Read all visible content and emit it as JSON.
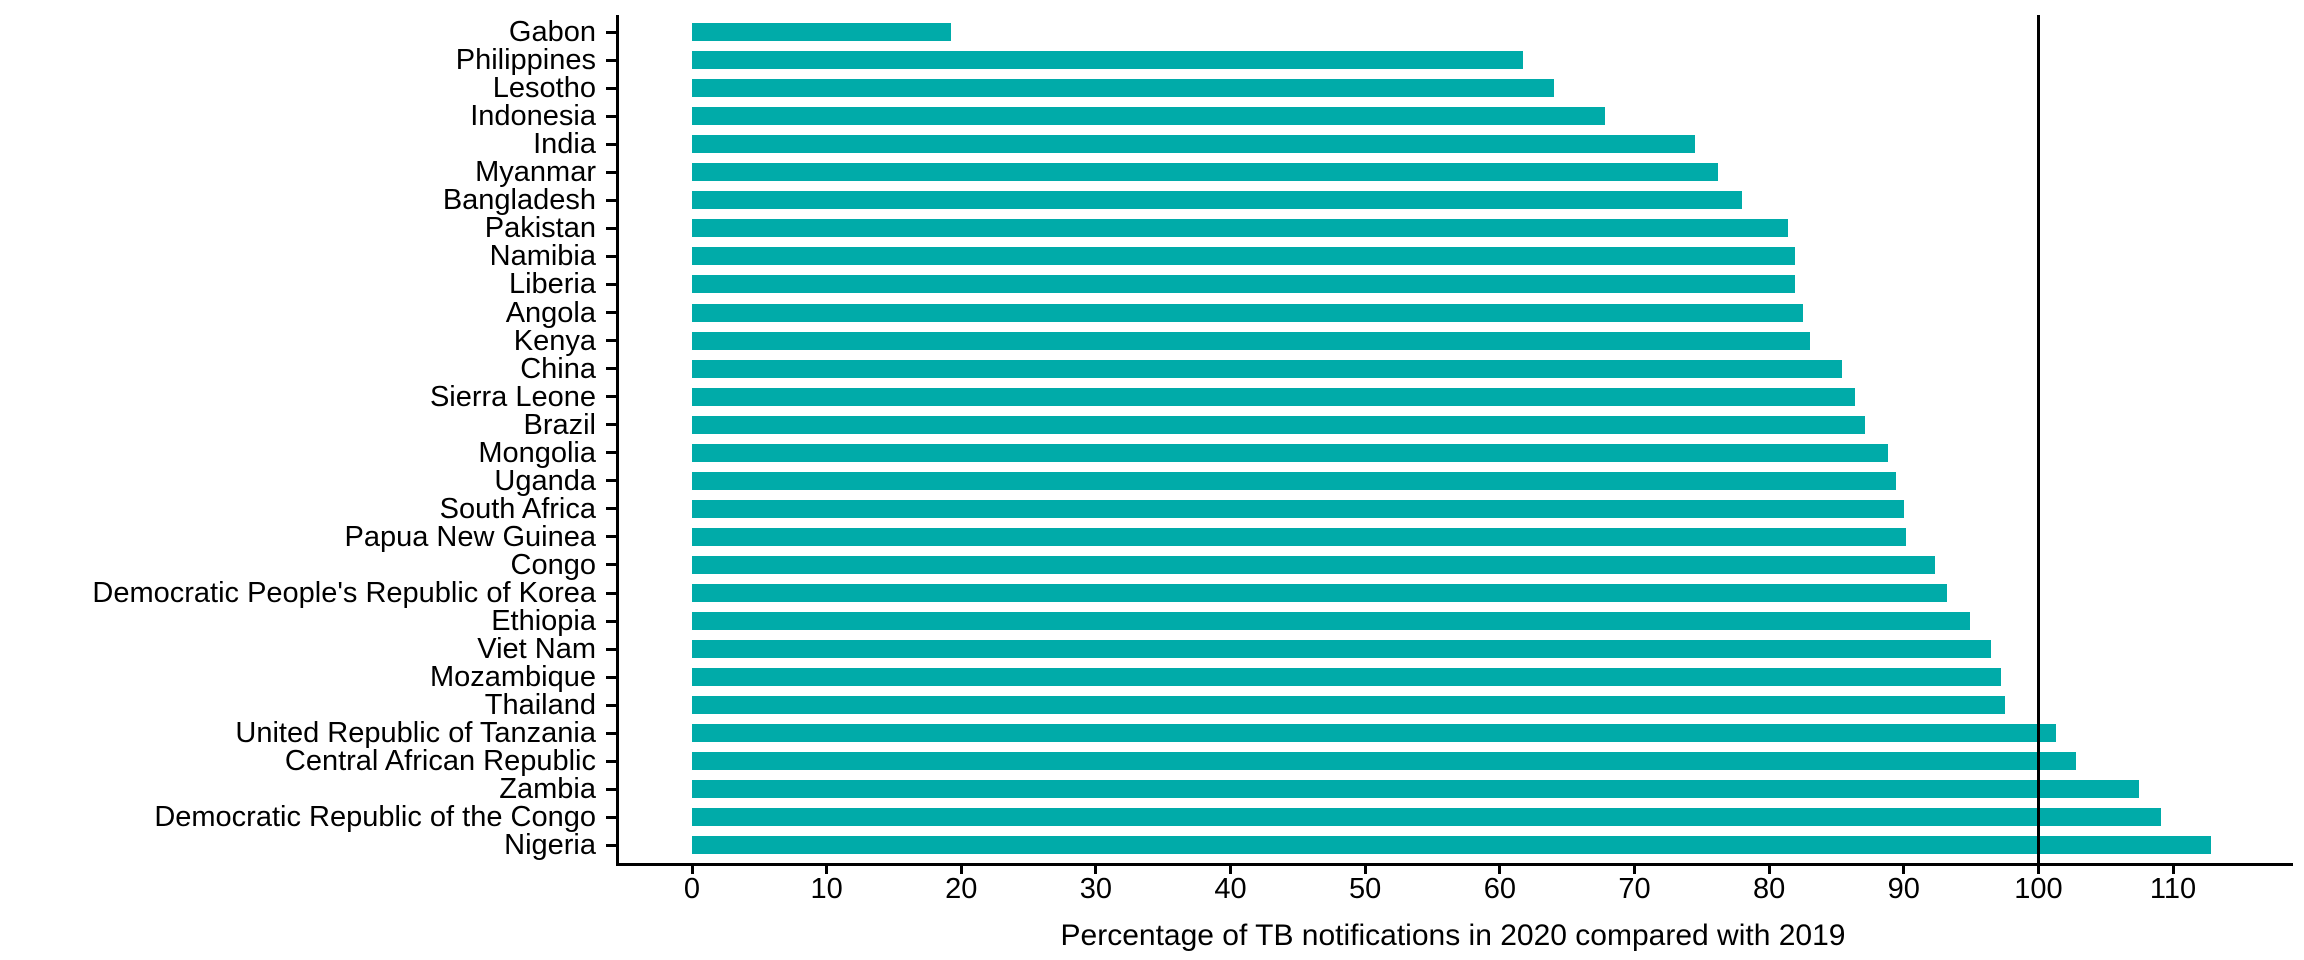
{
  "chart_data": {
    "type": "bar",
    "orientation": "horizontal",
    "title": "",
    "xlabel": "Percentage of TB notifications in 2020 compared with 2019",
    "ylabel": "",
    "categories": [
      "Gabon",
      "Philippines",
      "Lesotho",
      "Indonesia",
      "India",
      "Myanmar",
      "Bangladesh",
      "Pakistan",
      "Namibia",
      "Liberia",
      "Angola",
      "Kenya",
      "China",
      "Sierra Leone",
      "Brazil",
      "Mongolia",
      "Uganda",
      "South Africa",
      "Papua New Guinea",
      "Congo",
      "Democratic People's Republic of Korea",
      "Ethiopia",
      "Viet Nam",
      "Mozambique",
      "Thailand",
      "United Republic of Tanzania",
      "Central African Republic",
      "Zambia",
      "Democratic Republic of the Congo",
      "Nigeria"
    ],
    "values": [
      19.2,
      61.7,
      64.0,
      67.8,
      74.5,
      76.2,
      78.0,
      81.4,
      81.9,
      81.9,
      82.5,
      83.0,
      85.4,
      86.4,
      87.1,
      88.8,
      89.4,
      90.0,
      90.2,
      92.3,
      93.2,
      94.9,
      96.5,
      97.2,
      97.5,
      101.3,
      102.8,
      107.5,
      109.1,
      112.8
    ],
    "x_ticks": [
      0,
      10,
      20,
      30,
      40,
      50,
      60,
      70,
      80,
      90,
      100,
      110
    ],
    "xlim_display": [
      -5.65,
      118.7
    ],
    "reference_line_x": 100,
    "bar_color": "#00ABA9",
    "axis_color": "#000000",
    "grid": false,
    "legend": false
  }
}
